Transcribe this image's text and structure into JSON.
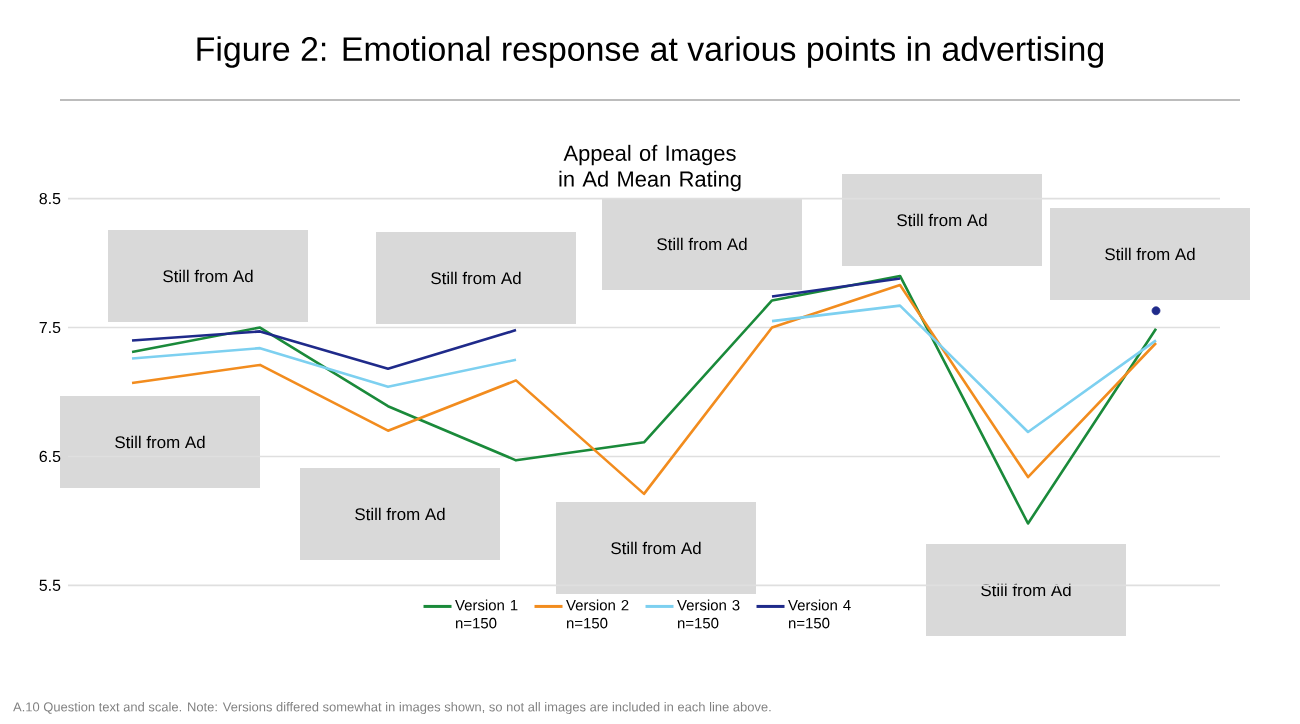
{
  "chart_data": {
    "type": "line",
    "title": "Figure 2: Emotional response at various points in advertising",
    "subtitle": "Appeal of Images in Ad Mean Rating",
    "categories": [
      null,
      null,
      null,
      null,
      null,
      null,
      null,
      null,
      null
    ],
    "series": [
      {
        "name": "Version 1 n=150",
        "color": "#1a8a3a",
        "values": [
          7.31,
          7.5,
          6.89,
          6.47,
          6.61,
          7.71,
          7.9,
          5.98,
          7.49
        ]
      },
      {
        "name": "Version 2 n=150",
        "color": "#f28c1e",
        "values": [
          7.07,
          7.21,
          6.7,
          7.09,
          6.21,
          7.5,
          7.83,
          6.34,
          7.38
        ]
      },
      {
        "name": "Version 3 n=150",
        "color": "#7dd0f0",
        "values": [
          7.26,
          7.34,
          7.04,
          7.25,
          null,
          7.55,
          7.67,
          6.69,
          7.4
        ]
      },
      {
        "name": "Version 4 n=150",
        "color": "#1f2a8a",
        "values": [
          7.4,
          7.47,
          7.18,
          7.48,
          null,
          7.74,
          7.88,
          null,
          7.63
        ]
      }
    ],
    "ylim": [
      5.5,
      8.5
    ],
    "yticks": [
      5.5,
      6.5,
      7.5,
      8.5
    ],
    "grid": "y",
    "legend": "bottom",
    "tick_labels": "y",
    "annotations": [
      "Still from Ad",
      "Still from Ad",
      "Still from Ad",
      "Still from Ad",
      "Still from Ad",
      "Still from Ad",
      "Still from Ad",
      "Still from Ad",
      "Still from Ad",
      "A.10 Question text and scale. Note: Versions differed somewhat in images shown, so not all images are included in each line above."
    ]
  }
}
